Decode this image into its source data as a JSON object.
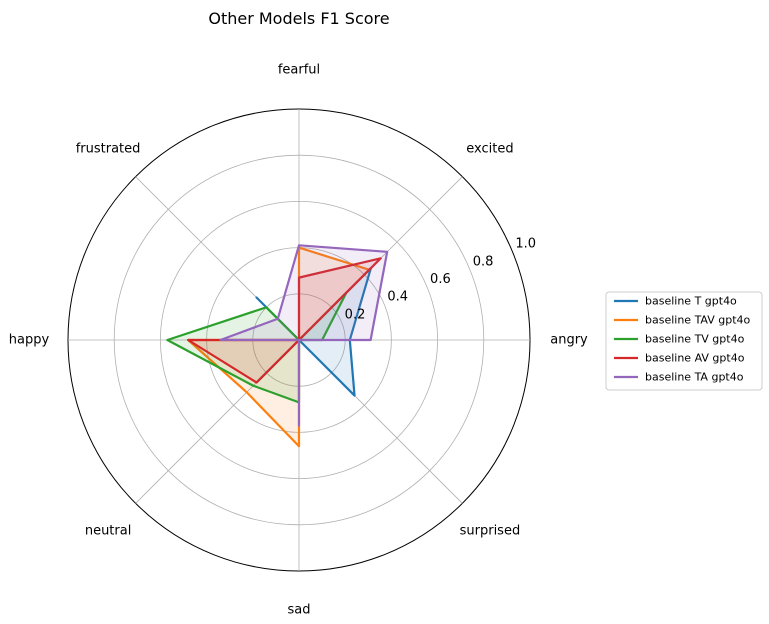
{
  "chart_data": {
    "type": "radar",
    "title": "Other Models F1 Score",
    "categories": [
      "angry",
      "excited",
      "fearful",
      "frustrated",
      "happy",
      "neutral",
      "sad",
      "surprised"
    ],
    "radial_ticks": [
      "0.2",
      "0.4",
      "0.6",
      "0.8",
      "1.0"
    ],
    "rlim": [
      0,
      1.0
    ],
    "grid": true,
    "legend_position": "right",
    "series": [
      {
        "name": "baseline T gpt4o",
        "color": "#1f77b4",
        "values": [
          0.22,
          0.44,
          0.0,
          0.26,
          0.0,
          0.26,
          0.0,
          0.34
        ]
      },
      {
        "name": "baseline TAV gpt4o",
        "color": "#ff7f0e",
        "values": [
          0.0,
          0.43,
          0.4,
          0.0,
          0.48,
          0.32,
          0.46,
          0.0
        ]
      },
      {
        "name": "baseline TV gpt4o",
        "color": "#2ca02c",
        "values": [
          0.1,
          0.29,
          0.0,
          0.2,
          0.57,
          0.28,
          0.27,
          0.0
        ]
      },
      {
        "name": "baseline AV gpt4o",
        "color": "#d62728",
        "values": [
          0.0,
          0.5,
          0.27,
          0.0,
          0.48,
          0.26,
          0.0,
          0.0
        ]
      },
      {
        "name": "baseline TA gpt4o",
        "color": "#9467bd",
        "values": [
          0.31,
          0.54,
          0.41,
          0.13,
          0.34,
          0.0,
          0.37,
          0.0
        ]
      }
    ]
  }
}
